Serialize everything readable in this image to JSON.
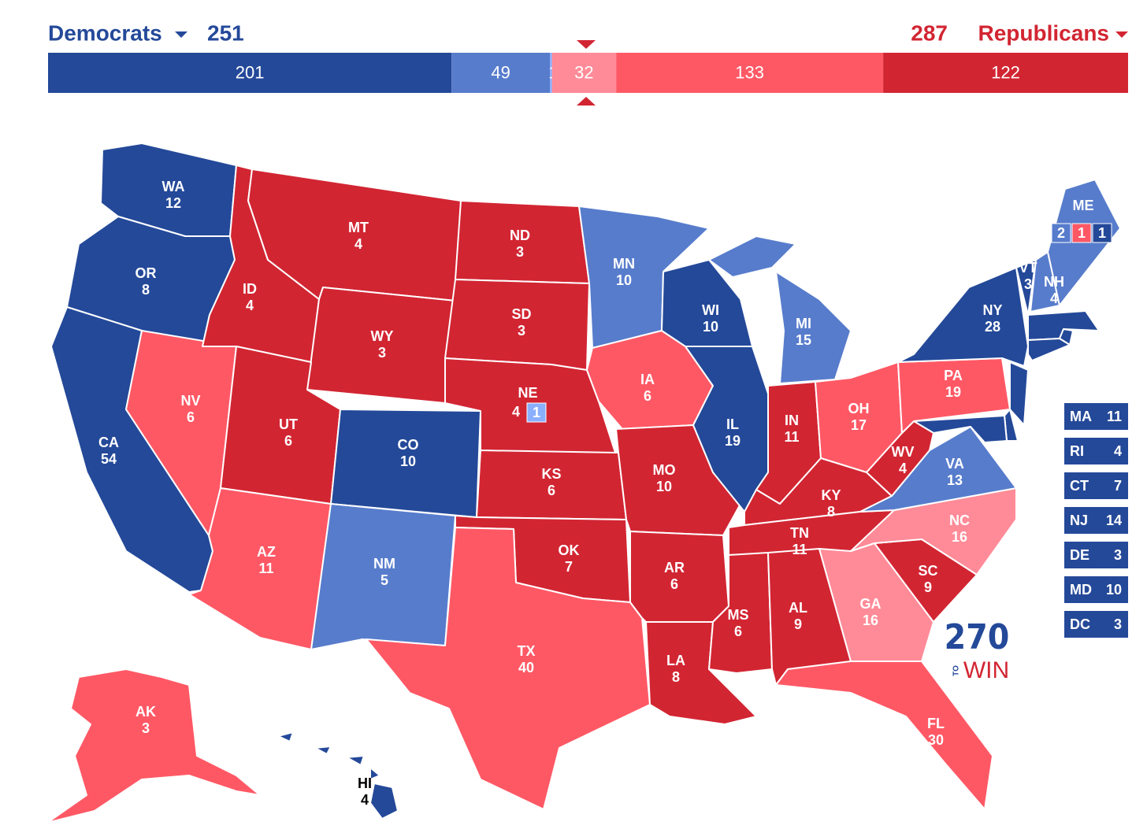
{
  "header": {
    "dem_label": "Democrats",
    "dem_total": 251,
    "rep_total": 287,
    "rep_label": "Republicans"
  },
  "bar": {
    "segments": [
      {
        "value": 201,
        "color": "#244999"
      },
      {
        "value": 49,
        "color": "#577ccc"
      },
      {
        "value": 1,
        "color": "#8aafff"
      },
      {
        "value": 32,
        "color": "#ff8b98"
      },
      {
        "value": 133,
        "color": "#ff5865"
      },
      {
        "value": 122,
        "color": "#d22532"
      }
    ]
  },
  "states": [
    {
      "abbr": "WA",
      "votes": 12,
      "color": "#244999"
    },
    {
      "abbr": "OR",
      "votes": 8,
      "color": "#244999"
    },
    {
      "abbr": "CA",
      "votes": 54,
      "color": "#244999"
    },
    {
      "abbr": "NV",
      "votes": 6,
      "color": "#ff5865"
    },
    {
      "abbr": "ID",
      "votes": 4,
      "color": "#d22532"
    },
    {
      "abbr": "MT",
      "votes": 4,
      "color": "#d22532"
    },
    {
      "abbr": "WY",
      "votes": 3,
      "color": "#d22532"
    },
    {
      "abbr": "UT",
      "votes": 6,
      "color": "#d22532"
    },
    {
      "abbr": "AZ",
      "votes": 11,
      "color": "#ff5865"
    },
    {
      "abbr": "CO",
      "votes": 10,
      "color": "#244999"
    },
    {
      "abbr": "NM",
      "votes": 5,
      "color": "#577ccc"
    },
    {
      "abbr": "ND",
      "votes": 3,
      "color": "#d22532"
    },
    {
      "abbr": "SD",
      "votes": 3,
      "color": "#d22532"
    },
    {
      "abbr": "NE",
      "votes": 4,
      "color": "#d22532",
      "districts": [
        {
          "votes": 1,
          "color": "#8aafff"
        }
      ]
    },
    {
      "abbr": "KS",
      "votes": 6,
      "color": "#d22532"
    },
    {
      "abbr": "OK",
      "votes": 7,
      "color": "#d22532"
    },
    {
      "abbr": "TX",
      "votes": 40,
      "color": "#ff5865"
    },
    {
      "abbr": "MN",
      "votes": 10,
      "color": "#577ccc"
    },
    {
      "abbr": "IA",
      "votes": 6,
      "color": "#ff5865"
    },
    {
      "abbr": "MO",
      "votes": 10,
      "color": "#d22532"
    },
    {
      "abbr": "AR",
      "votes": 6,
      "color": "#d22532"
    },
    {
      "abbr": "LA",
      "votes": 8,
      "color": "#d22532"
    },
    {
      "abbr": "WI",
      "votes": 10,
      "color": "#244999"
    },
    {
      "abbr": "IL",
      "votes": 19,
      "color": "#244999"
    },
    {
      "abbr": "MI",
      "votes": 15,
      "color": "#577ccc"
    },
    {
      "abbr": "IN",
      "votes": 11,
      "color": "#d22532"
    },
    {
      "abbr": "OH",
      "votes": 17,
      "color": "#ff5865"
    },
    {
      "abbr": "KY",
      "votes": 8,
      "color": "#d22532"
    },
    {
      "abbr": "TN",
      "votes": 11,
      "color": "#d22532"
    },
    {
      "abbr": "MS",
      "votes": 6,
      "color": "#d22532"
    },
    {
      "abbr": "AL",
      "votes": 9,
      "color": "#d22532"
    },
    {
      "abbr": "GA",
      "votes": 16,
      "color": "#ff8b98"
    },
    {
      "abbr": "FL",
      "votes": 30,
      "color": "#ff5865"
    },
    {
      "abbr": "SC",
      "votes": 9,
      "color": "#d22532"
    },
    {
      "abbr": "NC",
      "votes": 16,
      "color": "#ff8b98"
    },
    {
      "abbr": "VA",
      "votes": 13,
      "color": "#577ccc"
    },
    {
      "abbr": "WV",
      "votes": 4,
      "color": "#d22532"
    },
    {
      "abbr": "PA",
      "votes": 19,
      "color": "#ff5865"
    },
    {
      "abbr": "NY",
      "votes": 28,
      "color": "#244999"
    },
    {
      "abbr": "VT",
      "votes": 3,
      "color": "#244999"
    },
    {
      "abbr": "NH",
      "votes": 4,
      "color": "#577ccc"
    },
    {
      "abbr": "ME",
      "color": "#577ccc",
      "districts": [
        {
          "votes": 2,
          "color": "#577ccc"
        },
        {
          "votes": 1,
          "color": "#ff5865"
        },
        {
          "votes": 1,
          "color": "#244999"
        }
      ]
    },
    {
      "abbr": "AK",
      "votes": 3,
      "color": "#ff5865"
    },
    {
      "abbr": "HI",
      "votes": 4,
      "color": "#244999"
    }
  ],
  "small_states": [
    {
      "abbr": "MA",
      "votes": 11,
      "color": "#244999"
    },
    {
      "abbr": "RI",
      "votes": 4,
      "color": "#244999"
    },
    {
      "abbr": "CT",
      "votes": 7,
      "color": "#244999"
    },
    {
      "abbr": "NJ",
      "votes": 14,
      "color": "#244999"
    },
    {
      "abbr": "DE",
      "votes": 3,
      "color": "#244999"
    },
    {
      "abbr": "MD",
      "votes": 10,
      "color": "#244999"
    },
    {
      "abbr": "DC",
      "votes": 3,
      "color": "#244999"
    }
  ],
  "logo": {
    "number": "270",
    "to": "TO",
    "win": "WIN"
  }
}
